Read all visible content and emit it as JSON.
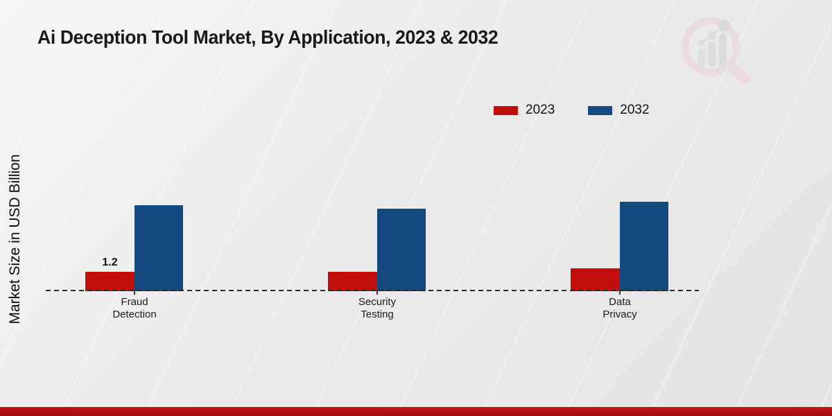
{
  "title": "Ai Deception Tool Market, By Application, 2023 & 2032",
  "y_axis": {
    "label": "Market Size in USD Billion"
  },
  "legend": {
    "items": [
      {
        "label": "2023",
        "color": "#c30d0d"
      },
      {
        "label": "2032",
        "color": "#154a80"
      }
    ]
  },
  "chart_data": {
    "type": "bar",
    "title": "Ai Deception Tool Market, By Application, 2023 & 2032",
    "categories": [
      "Fraud Detection",
      "Security Testing",
      "Data Privacy"
    ],
    "series": [
      {
        "name": "2023",
        "color": "#c30d0d",
        "values": [
          1.2,
          1.2,
          1.4
        ]
      },
      {
        "name": "2032",
        "color": "#154a80",
        "values": [
          5.3,
          5.1,
          5.5
        ]
      }
    ],
    "annotations": [
      {
        "category_index": 0,
        "series_index": 0,
        "text": "1.2"
      }
    ],
    "xlabel": "",
    "ylabel": "Market Size in USD Billion",
    "ylim": [
      0,
      6
    ],
    "grid": false,
    "baseline_style": "dashed",
    "legend_position": "top-right",
    "y_ticks_visible": false
  },
  "branding": {
    "watermark_icon": "magnifier-bar-chart-logo",
    "footer_bar_color": "#b30f0f"
  }
}
